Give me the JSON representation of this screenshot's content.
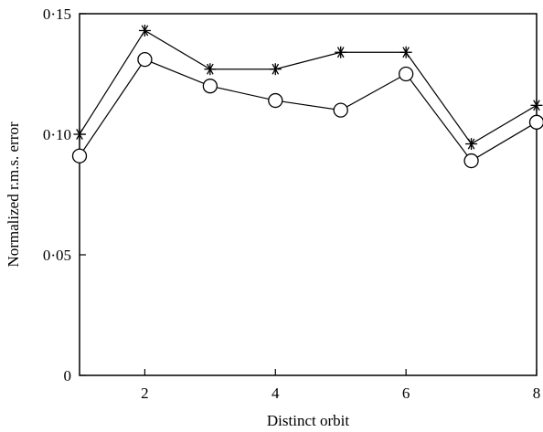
{
  "chart_data": {
    "type": "line",
    "title": "",
    "xlabel": "Distinct orbit",
    "ylabel": "Normalized r.m.s. error",
    "xlim": [
      1,
      8
    ],
    "ylim": [
      0,
      0.15
    ],
    "x_ticks": [
      2,
      4,
      6,
      8
    ],
    "x_tick_labels": [
      "2",
      "4",
      "6",
      "8"
    ],
    "y_ticks": [
      0,
      0.05,
      0.1,
      0.15
    ],
    "y_tick_labels": [
      "0",
      "0·05",
      "0·10",
      "0·15"
    ],
    "grid": false,
    "x": [
      1,
      2,
      3,
      4,
      5,
      6,
      7,
      8
    ],
    "series": [
      {
        "marker": "asterisk",
        "color": "#000000",
        "values": [
          0.1,
          0.143,
          0.127,
          0.127,
          0.134,
          0.134,
          0.096,
          0.112
        ]
      },
      {
        "marker": "circle",
        "color": "#000000",
        "values": [
          0.091,
          0.131,
          0.12,
          0.114,
          0.11,
          0.125,
          0.089,
          0.105
        ]
      }
    ]
  }
}
